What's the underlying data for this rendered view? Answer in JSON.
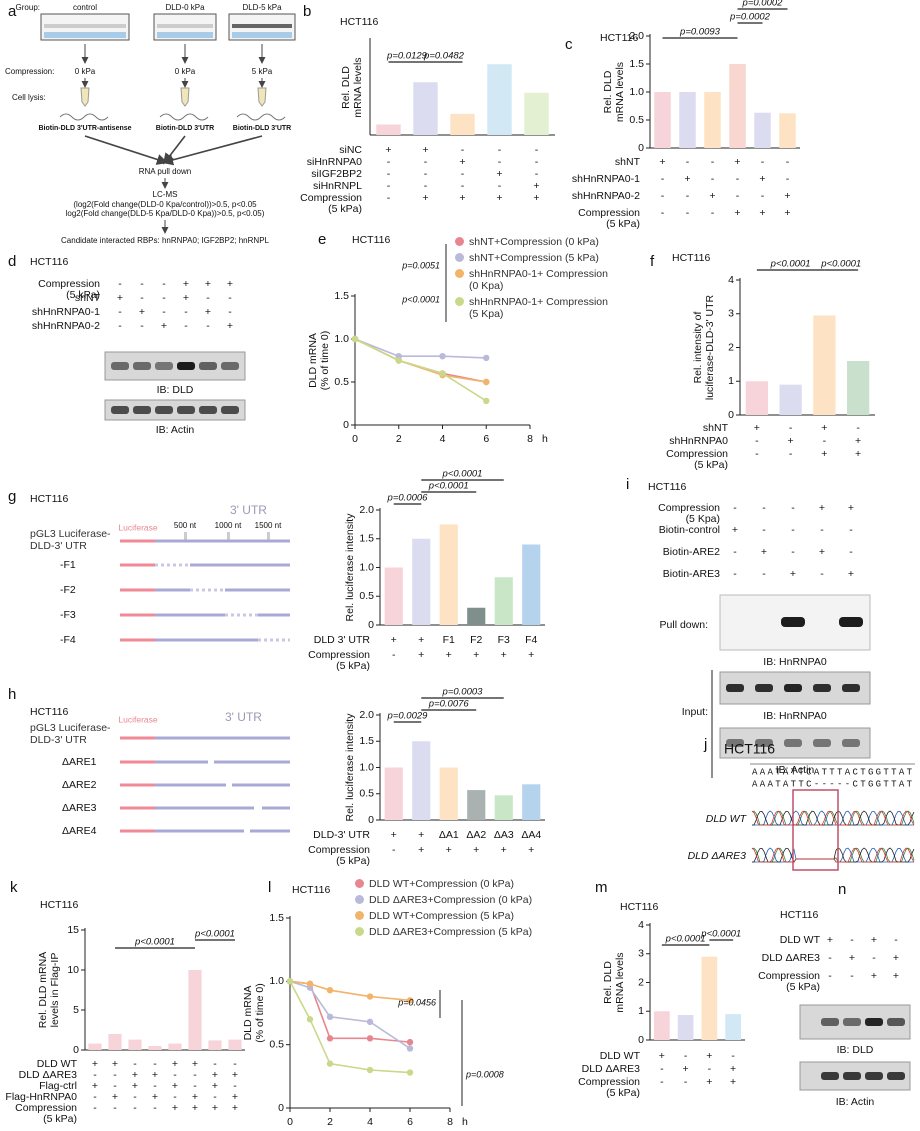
{
  "scheme_a": {
    "label": "a",
    "group": "Group:",
    "groups": [
      "control",
      "DLD-0 kPa",
      "DLD-5 kPa"
    ],
    "compression": "Compression:",
    "pressures": [
      "0 kPa",
      "0 kPa",
      "5 kPa"
    ],
    "lysis": "Cell lysis:",
    "probes": [
      "Biotin-DLD 3'UTR-antisense",
      "Biotin-DLD 3'UTR",
      "Biotin-DLD 3'UTR"
    ],
    "steps": [
      "RNA pull down",
      "LC-MS",
      "(log2(Fold change(DLD-0 Kpa/control))>0.5, p<0.05",
      "log2(Fold change(DLD-5 Kpa/DLD-0 Kpa))>0.5, p<0.05)",
      "Candidate interacted RBPs: hnRNPA0; IGF2BP2; hnRNPL"
    ]
  },
  "blot_d": {
    "label": "d",
    "title": "HCT116",
    "rows": [
      {
        "name": [
          "Compression",
          "(5 kPa)"
        ],
        "marks": [
          "-",
          "-",
          "-",
          "+",
          "+",
          "+"
        ]
      },
      {
        "name": [
          "shNT"
        ],
        "marks": [
          "+",
          "-",
          "-",
          "+",
          "-",
          "-"
        ]
      },
      {
        "name": [
          "shHnRNPA0-1"
        ],
        "marks": [
          "-",
          "+",
          "-",
          "-",
          "+",
          "-"
        ]
      },
      {
        "name": [
          "shHnRNPA0-2"
        ],
        "marks": [
          "-",
          "-",
          "+",
          "-",
          "-",
          "+"
        ]
      }
    ],
    "probes": [
      "IB: DLD",
      "IB: Actin"
    ]
  },
  "scheme_g": {
    "label": "g",
    "title": "HCT116",
    "construct": "pGL3 Luciferase-DLD-3' UTR",
    "luciferase": "Luciferase",
    "utr": "3' UTR",
    "lengths": [
      "500 nt",
      "1000 nt",
      "1500 nt"
    ],
    "fragments": [
      "-F1",
      "-F2",
      "-F3",
      "-F4"
    ]
  },
  "blot_i": {
    "label": "i",
    "title": "HCT116",
    "rows": [
      {
        "name": [
          "Compression",
          "(5 Kpa)"
        ],
        "marks": [
          "-",
          "-",
          "-",
          "+",
          "+"
        ]
      },
      {
        "name": [
          "Biotin-control"
        ],
        "marks": [
          "+",
          "-",
          "-",
          "-",
          "-"
        ]
      },
      {
        "name": [
          "Biotin-ARE2"
        ],
        "marks": [
          "-",
          "+",
          "-",
          "+",
          "-"
        ]
      },
      {
        "name": [
          "Biotin-ARE3"
        ],
        "marks": [
          "-",
          "-",
          "+",
          "-",
          "+"
        ]
      }
    ],
    "pull_down": "Pull down:",
    "input": "Input:",
    "probes": [
      "IB: HnRNPA0",
      "IB: HnRNPA0",
      "IB: Actin"
    ]
  },
  "scheme_h": {
    "label": "h",
    "title": "HCT116",
    "construct": "pGL3 Luciferase-DLD-3' UTR",
    "luciferase": "Luciferase",
    "utr": "3' UTR",
    "mutants": [
      "ΔARE1",
      "ΔARE2",
      "ΔARE3",
      "ΔARE4"
    ]
  },
  "sequencing_j": {
    "label": "j",
    "title": "HCT116",
    "sequences": [
      "AAATATTCATTTACTGGTTAT",
      "AAATATTC-----CTGGTTAT"
    ],
    "tracks": [
      "DLD WT",
      "DLD ΔARE3"
    ]
  },
  "blot_n": {
    "label": "n",
    "title": "HCT116",
    "rows": [
      {
        "name": [
          "DLD WT"
        ],
        "marks": [
          "+",
          "-",
          "+",
          "-"
        ]
      },
      {
        "name": [
          "DLD ΔARE3"
        ],
        "marks": [
          "-",
          "+",
          "-",
          "+"
        ]
      },
      {
        "name": [
          "Compression",
          "(5 kPa)"
        ],
        "marks": [
          "-",
          "-",
          "+",
          "+"
        ]
      }
    ],
    "probes": [
      "IB: DLD",
      "IB: Actin"
    ]
  },
  "chart_data": [
    {
      "type": "bar",
      "label": "b",
      "title": "HCT116",
      "ylabel": [
        "Rel. DLD",
        "mRNA levels"
      ],
      "ylim": [
        0,
        9
      ],
      "values": [
        1.0,
        5.0,
        2.0,
        6.7,
        4.0
      ],
      "colors": [
        "#f7d4d9",
        "#dcdcf0",
        "#fde2c4",
        "#d2e8f4",
        "#e4f0d2"
      ],
      "rows": [
        {
          "name": [
            "siNC"
          ],
          "marks": [
            "+",
            "+",
            "-",
            "-",
            "-"
          ]
        },
        {
          "name": [
            "siHnRNPA0"
          ],
          "marks": [
            "-",
            "-",
            "+",
            "-",
            "-"
          ]
        },
        {
          "name": [
            "siIGF2BP2"
          ],
          "marks": [
            "-",
            "-",
            "-",
            "+",
            "-"
          ]
        },
        {
          "name": [
            "siHnRNPL"
          ],
          "marks": [
            "-",
            "-",
            "-",
            "-",
            "+"
          ]
        },
        {
          "name": [
            "Compression",
            "(5 kPa)"
          ],
          "marks": [
            "-",
            "+",
            "+",
            "+",
            "+"
          ]
        }
      ],
      "annotations": [
        "p=0.0129",
        "p=0.0482"
      ]
    },
    {
      "type": "bar",
      "label": "c",
      "title": "HCT116",
      "ylabel": [
        "Rel. DLD",
        "mRNA levels"
      ],
      "ylim": [
        0,
        2
      ],
      "yticks": [
        0,
        0.5,
        {
          "value": 1,
          "label": "1.0"
        },
        1.5,
        {
          "value": 2,
          "label": "2.0"
        }
      ],
      "values": [
        1.0,
        1.0,
        1.0,
        1.5,
        0.63,
        0.62
      ],
      "colors": [
        "#f7d4d9",
        "#dcdcf0",
        "#fde2c4",
        "#f9d6cf",
        "#dcdcf0",
        "#fde2c4"
      ],
      "rows": [
        {
          "name": [
            "shNT"
          ],
          "marks": [
            "+",
            "-",
            "-",
            "+",
            "-",
            "-"
          ]
        },
        {
          "name": [
            "shHnRNPA0-1"
          ],
          "marks": [
            "-",
            "+",
            "-",
            "-",
            "+",
            "-"
          ]
        },
        {
          "name": [
            "shHnRNPA0-2"
          ],
          "marks": [
            "-",
            "-",
            "+",
            "-",
            "-",
            "+"
          ]
        },
        {
          "name": [
            "Compression",
            "(5 kPa)"
          ],
          "marks": [
            "-",
            "-",
            "-",
            "+",
            "+",
            "+"
          ]
        }
      ],
      "annotations": [
        "p=0.0093",
        "p=0.0002",
        "p=0.0002"
      ]
    },
    {
      "type": "line",
      "label": "e",
      "title": "HCT116",
      "ylabel": [
        "DLD mRNA",
        "(% of time 0)"
      ],
      "xlabel": "h",
      "x": [
        0,
        2,
        4,
        6
      ],
      "xlim": [
        0,
        8
      ],
      "xticks": [
        0,
        2,
        4,
        6,
        8
      ],
      "ylim": [
        0,
        1.5
      ],
      "yticks": [
        0,
        0.5,
        {
          "value": 1,
          "label": "1.0"
        },
        1.5
      ],
      "series": [
        {
          "name": "shNT+Compression (0 kPa)",
          "color": "#e8868f",
          "values": [
            1.0,
            0.75,
            0.6,
            0.5
          ]
        },
        {
          "name": "shNT+Compression (5 kPa)",
          "color": "#b9b9d9",
          "values": [
            1.0,
            0.8,
            0.8,
            0.78
          ]
        },
        {
          "name": "shHnRNPA0-1+ Compression (0 Kpa)",
          "color": "#f2b36b",
          "values": [
            1.0,
            0.75,
            0.58,
            0.5
          ]
        },
        {
          "name": "shHnRNPA0-1+ Compression (5 Kpa)",
          "color": "#c9d98a",
          "values": [
            1.0,
            0.75,
            0.6,
            0.28
          ]
        }
      ],
      "annotations": [
        "p=0.0051",
        "p<0.0001"
      ]
    },
    {
      "type": "bar",
      "label": "f",
      "title": "HCT116",
      "ylabel": [
        "Rel. intensity of",
        "luciferase-DLD-3' UTR"
      ],
      "ylim": [
        0,
        4
      ],
      "yticks": [
        0,
        1,
        2,
        3,
        4
      ],
      "values": [
        1.0,
        0.9,
        2.95,
        1.6
      ],
      "colors": [
        "#f7d4d9",
        "#dcdcf0",
        "#fde2c4",
        "#c8e0cc"
      ],
      "rows": [
        {
          "name": [
            "shNT"
          ],
          "marks": [
            "+",
            "-",
            "+",
            "-"
          ]
        },
        {
          "name": [
            "shHnRNPA0"
          ],
          "marks": [
            "-",
            "+",
            "-",
            "+"
          ]
        },
        {
          "name": [
            "Compression",
            "(5 kPa)"
          ],
          "marks": [
            "-",
            "-",
            "+",
            "+"
          ]
        }
      ],
      "annotations": [
        "p<0.0001",
        "p<0.0001"
      ]
    },
    {
      "type": "bar",
      "ylabel": [
        "Rel. luciferase intensity"
      ],
      "ylim": [
        0,
        2
      ],
      "yticks": [
        0,
        0.5,
        {
          "value": 1,
          "label": "1.0"
        },
        1.5,
        {
          "value": 2,
          "label": "2.0"
        }
      ],
      "values": [
        1.0,
        1.5,
        1.75,
        0.3,
        0.83,
        1.4
      ],
      "colors": [
        "#f7d4d9",
        "#dcdcf0",
        "#fde2c4",
        "#7f8f8c",
        "#c9e6c6",
        "#b5d3ec"
      ],
      "rows": [
        {
          "name": [
            "DLD 3' UTR"
          ],
          "marks": [
            "+",
            "+",
            "F1",
            "F2",
            "F3",
            "F4"
          ]
        },
        {
          "name": [
            "Compression",
            "(5 kPa)"
          ],
          "marks": [
            "-",
            "+",
            "+",
            "+",
            "+",
            "+"
          ]
        }
      ],
      "annotations": [
        "p=0.0006",
        "p<0.0001",
        "p<0.0001"
      ]
    },
    {
      "type": "bar",
      "ylabel": [
        "Rel. luciferase intensity"
      ],
      "ylim": [
        0,
        2
      ],
      "yticks": [
        0,
        0.5,
        {
          "value": 1,
          "label": "1.0"
        },
        1.5,
        {
          "value": 2,
          "label": "2.0"
        }
      ],
      "values": [
        1.0,
        1.5,
        1.0,
        0.57,
        0.47,
        0.68
      ],
      "colors": [
        "#f7d4d9",
        "#dcdcf0",
        "#fde2c4",
        "#a9b2b0",
        "#c9e6c6",
        "#b5d3ec"
      ],
      "rows": [
        {
          "name": [
            "DLD-3' UTR"
          ],
          "marks": [
            "+",
            "+",
            "ΔA1",
            "ΔA2",
            "ΔA3",
            "ΔA4"
          ]
        },
        {
          "name": [
            "Compression",
            "(5 kPa)"
          ],
          "marks": [
            "-",
            "+",
            "+",
            "+",
            "+",
            "+"
          ]
        }
      ],
      "annotations": [
        "p=0.0029",
        "p=0.0076",
        "p=0.0003"
      ]
    },
    {
      "type": "bar",
      "label": "k",
      "title": "HCT116",
      "ylabel": [
        "Rel. DLD mRNA",
        "levels in Flag-IP"
      ],
      "ylim": [
        0,
        15
      ],
      "yticks": [
        0,
        5,
        10,
        15
      ],
      "values": [
        0.8,
        2.0,
        1.3,
        0.5,
        0.8,
        10.0,
        1.2,
        1.3
      ],
      "colors": [
        "#f7d4d9",
        "#f7d4d9",
        "#f7d4d9",
        "#f7d4d9",
        "#f7d4d9",
        "#f7d4d9",
        "#f7d4d9",
        "#f7d4d9"
      ],
      "rows": [
        {
          "name": [
            "DLD WT"
          ],
          "marks": [
            "+",
            "+",
            "-",
            "-",
            "+",
            "+",
            "-",
            "-"
          ]
        },
        {
          "name": [
            "DLD ΔARE3"
          ],
          "marks": [
            "-",
            "-",
            "+",
            "+",
            "-",
            "-",
            "+",
            "+"
          ]
        },
        {
          "name": [
            "Flag-ctrl"
          ],
          "marks": [
            "+",
            "-",
            "+",
            "-",
            "+",
            "-",
            "+",
            "-"
          ]
        },
        {
          "name": [
            "Flag-HnRNPA0"
          ],
          "marks": [
            "-",
            "+",
            "-",
            "+",
            "-",
            "+",
            "-",
            "+"
          ]
        },
        {
          "name": [
            "Compression",
            "(5 kPa)"
          ],
          "marks": [
            "-",
            "-",
            "-",
            "-",
            "+",
            "+",
            "+",
            "+"
          ]
        }
      ],
      "annotations": [
        "p<0.0001",
        "p<0.0001"
      ]
    },
    {
      "type": "line",
      "label": "l",
      "title": "HCT116",
      "ylabel": [
        "DLD mRNA",
        "(% of time 0)"
      ],
      "xlabel": "h",
      "x": [
        0,
        1,
        2,
        4,
        6
      ],
      "xlim": [
        0,
        8
      ],
      "xticks": [
        0,
        2,
        4,
        6,
        8
      ],
      "ylim": [
        0,
        1.5
      ],
      "yticks": [
        0,
        0.5,
        {
          "value": 1,
          "label": "1.0"
        },
        1.5
      ],
      "series": [
        {
          "name": "DLD WT+Compression (0 kPa)",
          "color": "#e8868f",
          "values": [
            1.0,
            0.98,
            0.55,
            0.55,
            0.52
          ]
        },
        {
          "name": "DLD ΔARE3+Compression (0 kPa)",
          "color": "#b9b9d9",
          "values": [
            1.0,
            0.95,
            0.72,
            0.68,
            0.47
          ]
        },
        {
          "name": "DLD WT+Compression (5 kPa)",
          "color": "#f2b36b",
          "values": [
            1.0,
            0.98,
            0.93,
            0.88,
            0.85
          ]
        },
        {
          "name": "DLD ΔARE3+Compression (5 kPa)",
          "color": "#c9d98a",
          "values": [
            1.0,
            0.7,
            0.35,
            0.3,
            0.28
          ]
        }
      ],
      "annotations": [
        "p=0.0456",
        "p=0.0008"
      ]
    },
    {
      "type": "bar",
      "label": "m",
      "title": "HCT116",
      "ylabel": [
        "Rel. DLD",
        "mRNA levels"
      ],
      "ylim": [
        0,
        4
      ],
      "yticks": [
        0,
        1,
        2,
        3,
        4
      ],
      "values": [
        1.0,
        0.87,
        2.9,
        0.9
      ],
      "colors": [
        "#f7d4d9",
        "#dcdcf0",
        "#fde2c4",
        "#d2e8f4"
      ],
      "rows": [
        {
          "name": [
            "DLD WT"
          ],
          "marks": [
            "+",
            "-",
            "+",
            "-"
          ]
        },
        {
          "name": [
            "DLD ΔARE3"
          ],
          "marks": [
            "-",
            "+",
            "-",
            "+"
          ]
        },
        {
          "name": [
            "Compression",
            "(5 kPa)"
          ],
          "marks": [
            "-",
            "-",
            "+",
            "+"
          ]
        }
      ],
      "annotations": [
        "p<0.0001",
        "p<0.0001"
      ]
    }
  ]
}
